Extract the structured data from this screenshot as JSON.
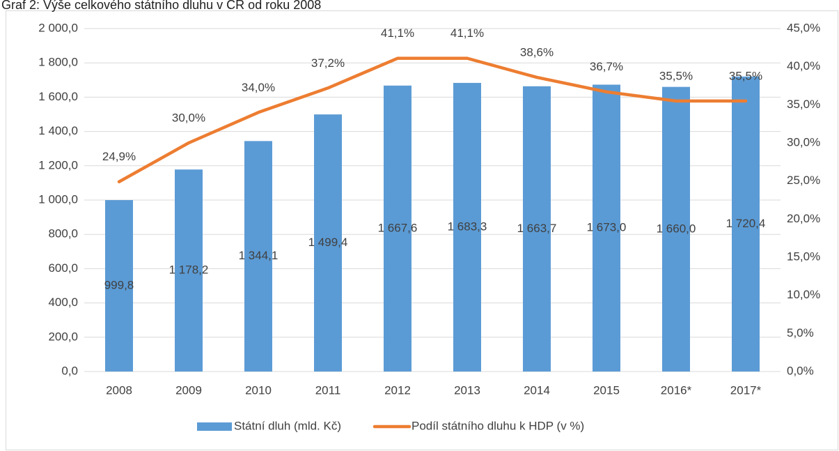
{
  "chart_data": {
    "type": "bar",
    "title": "Graf 2: Výše celkového státního dluhu v ČR od roku 2008",
    "categories": [
      "2008",
      "2009",
      "2010",
      "2011",
      "2012",
      "2013",
      "2014",
      "2015",
      "2016*",
      "2017*"
    ],
    "series": [
      {
        "name": "Státní dluh (mld. Kč)",
        "type": "bar",
        "color": "#5b9bd5",
        "values": [
          999.8,
          1178.2,
          1344.1,
          1499.4,
          1667.6,
          1683.3,
          1663.7,
          1673.0,
          1660.0,
          1720.4
        ],
        "value_labels": [
          "999,8",
          "1 178,2",
          "1 344,1",
          "1 499,4",
          "1 667,6",
          "1 683,3",
          "1 663,7",
          "1 673,0",
          "1 660,0",
          "1 720,4"
        ]
      },
      {
        "name": "Podíl státního dluhu k HDP (v %)",
        "type": "line",
        "axis": "y2",
        "color": "#ed7d31",
        "values": [
          24.9,
          30.0,
          34.0,
          37.2,
          41.1,
          41.1,
          38.6,
          36.7,
          35.5,
          35.5
        ],
        "value_labels": [
          "24,9%",
          "30,0%",
          "34,0%",
          "37,2%",
          "41,1%",
          "41,1%",
          "38,6%",
          "36,7%",
          "35,5%",
          "35,5%"
        ]
      }
    ],
    "ylim": [
      0,
      2000
    ],
    "yticks": [
      {
        "value": 0,
        "label": "0,0"
      },
      {
        "value": 200,
        "label": "200,0"
      },
      {
        "value": 400,
        "label": "400,0"
      },
      {
        "value": 600,
        "label": "600,0"
      },
      {
        "value": 800,
        "label": "800,0"
      },
      {
        "value": 1000,
        "label": "1 000,0"
      },
      {
        "value": 1200,
        "label": "1 200,0"
      },
      {
        "value": 1400,
        "label": "1 400,0"
      },
      {
        "value": 1600,
        "label": "1 600,0"
      },
      {
        "value": 1800,
        "label": "1 800,0"
      },
      {
        "value": 2000,
        "label": "2 000,0"
      }
    ],
    "y2lim": [
      0,
      45
    ],
    "y2ticks": [
      {
        "value": 0,
        "label": "0,0%"
      },
      {
        "value": 5,
        "label": "5,0%"
      },
      {
        "value": 10,
        "label": "10,0%"
      },
      {
        "value": 15,
        "label": "15,0%"
      },
      {
        "value": 20,
        "label": "20,0%"
      },
      {
        "value": 25,
        "label": "25,0%"
      },
      {
        "value": 30,
        "label": "30,0%"
      },
      {
        "value": 35,
        "label": "35,0%"
      },
      {
        "value": 40,
        "label": "40,0%"
      },
      {
        "value": 45,
        "label": "45,0%"
      }
    ],
    "grid": true,
    "legend": "bottom"
  }
}
